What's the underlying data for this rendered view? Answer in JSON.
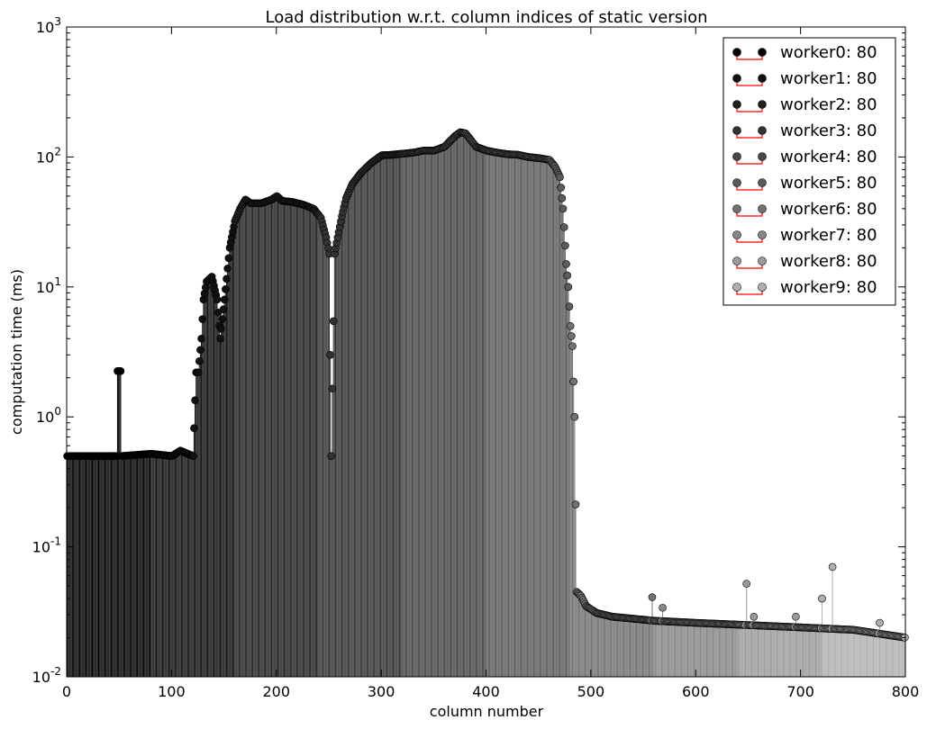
{
  "chart_data": {
    "type": "scatter",
    "subtype": "stem",
    "title": "Load distribution w.r.t. column indices of static version",
    "xlabel": "column number",
    "ylabel": "computation time (ms)",
    "xlim": [
      0,
      800
    ],
    "ylim": [
      0.01,
      1000
    ],
    "yscale": "log",
    "grid": false,
    "legend_position": "top-right",
    "x_ticks": [
      "0",
      "100",
      "200",
      "300",
      "400",
      "500",
      "600",
      "700",
      "800"
    ],
    "x_tick_values": [
      0,
      100,
      200,
      300,
      400,
      500,
      600,
      700,
      800
    ],
    "y_ticks": [
      {
        "value": 0.01,
        "base": "10",
        "exp": "-2"
      },
      {
        "value": 0.1,
        "base": "10",
        "exp": "-1"
      },
      {
        "value": 1,
        "base": "10",
        "exp": "0"
      },
      {
        "value": 10,
        "base": "10",
        "exp": "1"
      },
      {
        "value": 100,
        "base": "10",
        "exp": "2"
      },
      {
        "value": 1000,
        "base": "10",
        "exp": "3"
      }
    ],
    "stem_color": "#ff0000",
    "series": [
      {
        "name": "worker0: 80",
        "color": "#000000"
      },
      {
        "name": "worker1: 80",
        "color": "#111111"
      },
      {
        "name": "worker2: 80",
        "color": "#222222"
      },
      {
        "name": "worker3: 80",
        "color": "#333333"
      },
      {
        "name": "worker4: 80",
        "color": "#474747"
      },
      {
        "name": "worker5: 80",
        "color": "#5c5c5c"
      },
      {
        "name": "worker6: 80",
        "color": "#717171"
      },
      {
        "name": "worker7: 80",
        "color": "#868686"
      },
      {
        "name": "worker8: 80",
        "color": "#9b9b9b"
      },
      {
        "name": "worker9: 80",
        "color": "#b0b0b0"
      }
    ],
    "profile": [
      [
        0,
        0.5
      ],
      [
        45,
        0.5
      ],
      [
        47,
        0.5
      ],
      [
        48,
        2.25
      ],
      [
        51,
        2.25
      ],
      [
        52,
        0.5
      ],
      [
        80,
        0.52
      ],
      [
        100,
        0.5
      ],
      [
        108,
        0.55
      ],
      [
        120,
        0.5
      ],
      [
        123,
        2.2
      ],
      [
        125,
        2.2
      ],
      [
        128,
        4
      ],
      [
        130,
        8
      ],
      [
        133,
        11
      ],
      [
        138,
        12
      ],
      [
        143,
        8
      ],
      [
        146,
        4
      ],
      [
        150,
        8
      ],
      [
        155,
        20
      ],
      [
        160,
        32
      ],
      [
        165,
        40
      ],
      [
        170,
        47
      ],
      [
        175,
        44
      ],
      [
        185,
        44
      ],
      [
        195,
        47
      ],
      [
        200,
        50
      ],
      [
        205,
        46
      ],
      [
        215,
        45
      ],
      [
        225,
        43
      ],
      [
        235,
        40
      ],
      [
        242,
        34
      ],
      [
        247,
        24
      ],
      [
        250,
        18
      ],
      [
        252,
        0.5
      ],
      [
        255,
        18
      ],
      [
        258,
        24
      ],
      [
        262,
        35
      ],
      [
        266,
        48
      ],
      [
        272,
        62
      ],
      [
        280,
        75
      ],
      [
        290,
        90
      ],
      [
        300,
        103
      ],
      [
        310,
        104
      ],
      [
        320,
        106
      ],
      [
        330,
        108
      ],
      [
        340,
        112
      ],
      [
        350,
        112
      ],
      [
        360,
        120
      ],
      [
        370,
        145
      ],
      [
        375,
        155
      ],
      [
        380,
        152
      ],
      [
        390,
        120
      ],
      [
        400,
        112
      ],
      [
        410,
        108
      ],
      [
        420,
        105
      ],
      [
        430,
        104
      ],
      [
        440,
        100
      ],
      [
        450,
        98
      ],
      [
        460,
        95
      ],
      [
        465,
        85
      ],
      [
        470,
        70
      ],
      [
        473,
        40
      ],
      [
        476,
        15
      ],
      [
        478,
        10
      ],
      [
        480,
        5
      ],
      [
        482,
        3.5
      ],
      [
        484,
        1
      ],
      [
        486,
        0.045
      ],
      [
        490,
        0.042
      ],
      [
        495,
        0.035
      ],
      [
        505,
        0.031
      ],
      [
        520,
        0.029
      ],
      [
        540,
        0.028
      ],
      [
        560,
        0.027
      ],
      [
        600,
        0.026
      ],
      [
        650,
        0.025
      ],
      [
        700,
        0.024
      ],
      [
        750,
        0.023
      ],
      [
        800,
        0.02
      ]
    ],
    "outliers": [
      {
        "x": 558,
        "y": 0.041
      },
      {
        "x": 568,
        "y": 0.034
      },
      {
        "x": 648,
        "y": 0.052
      },
      {
        "x": 655,
        "y": 0.029
      },
      {
        "x": 695,
        "y": 0.029
      },
      {
        "x": 720,
        "y": 0.04
      },
      {
        "x": 730,
        "y": 0.07
      },
      {
        "x": 775,
        "y": 0.026
      }
    ]
  }
}
